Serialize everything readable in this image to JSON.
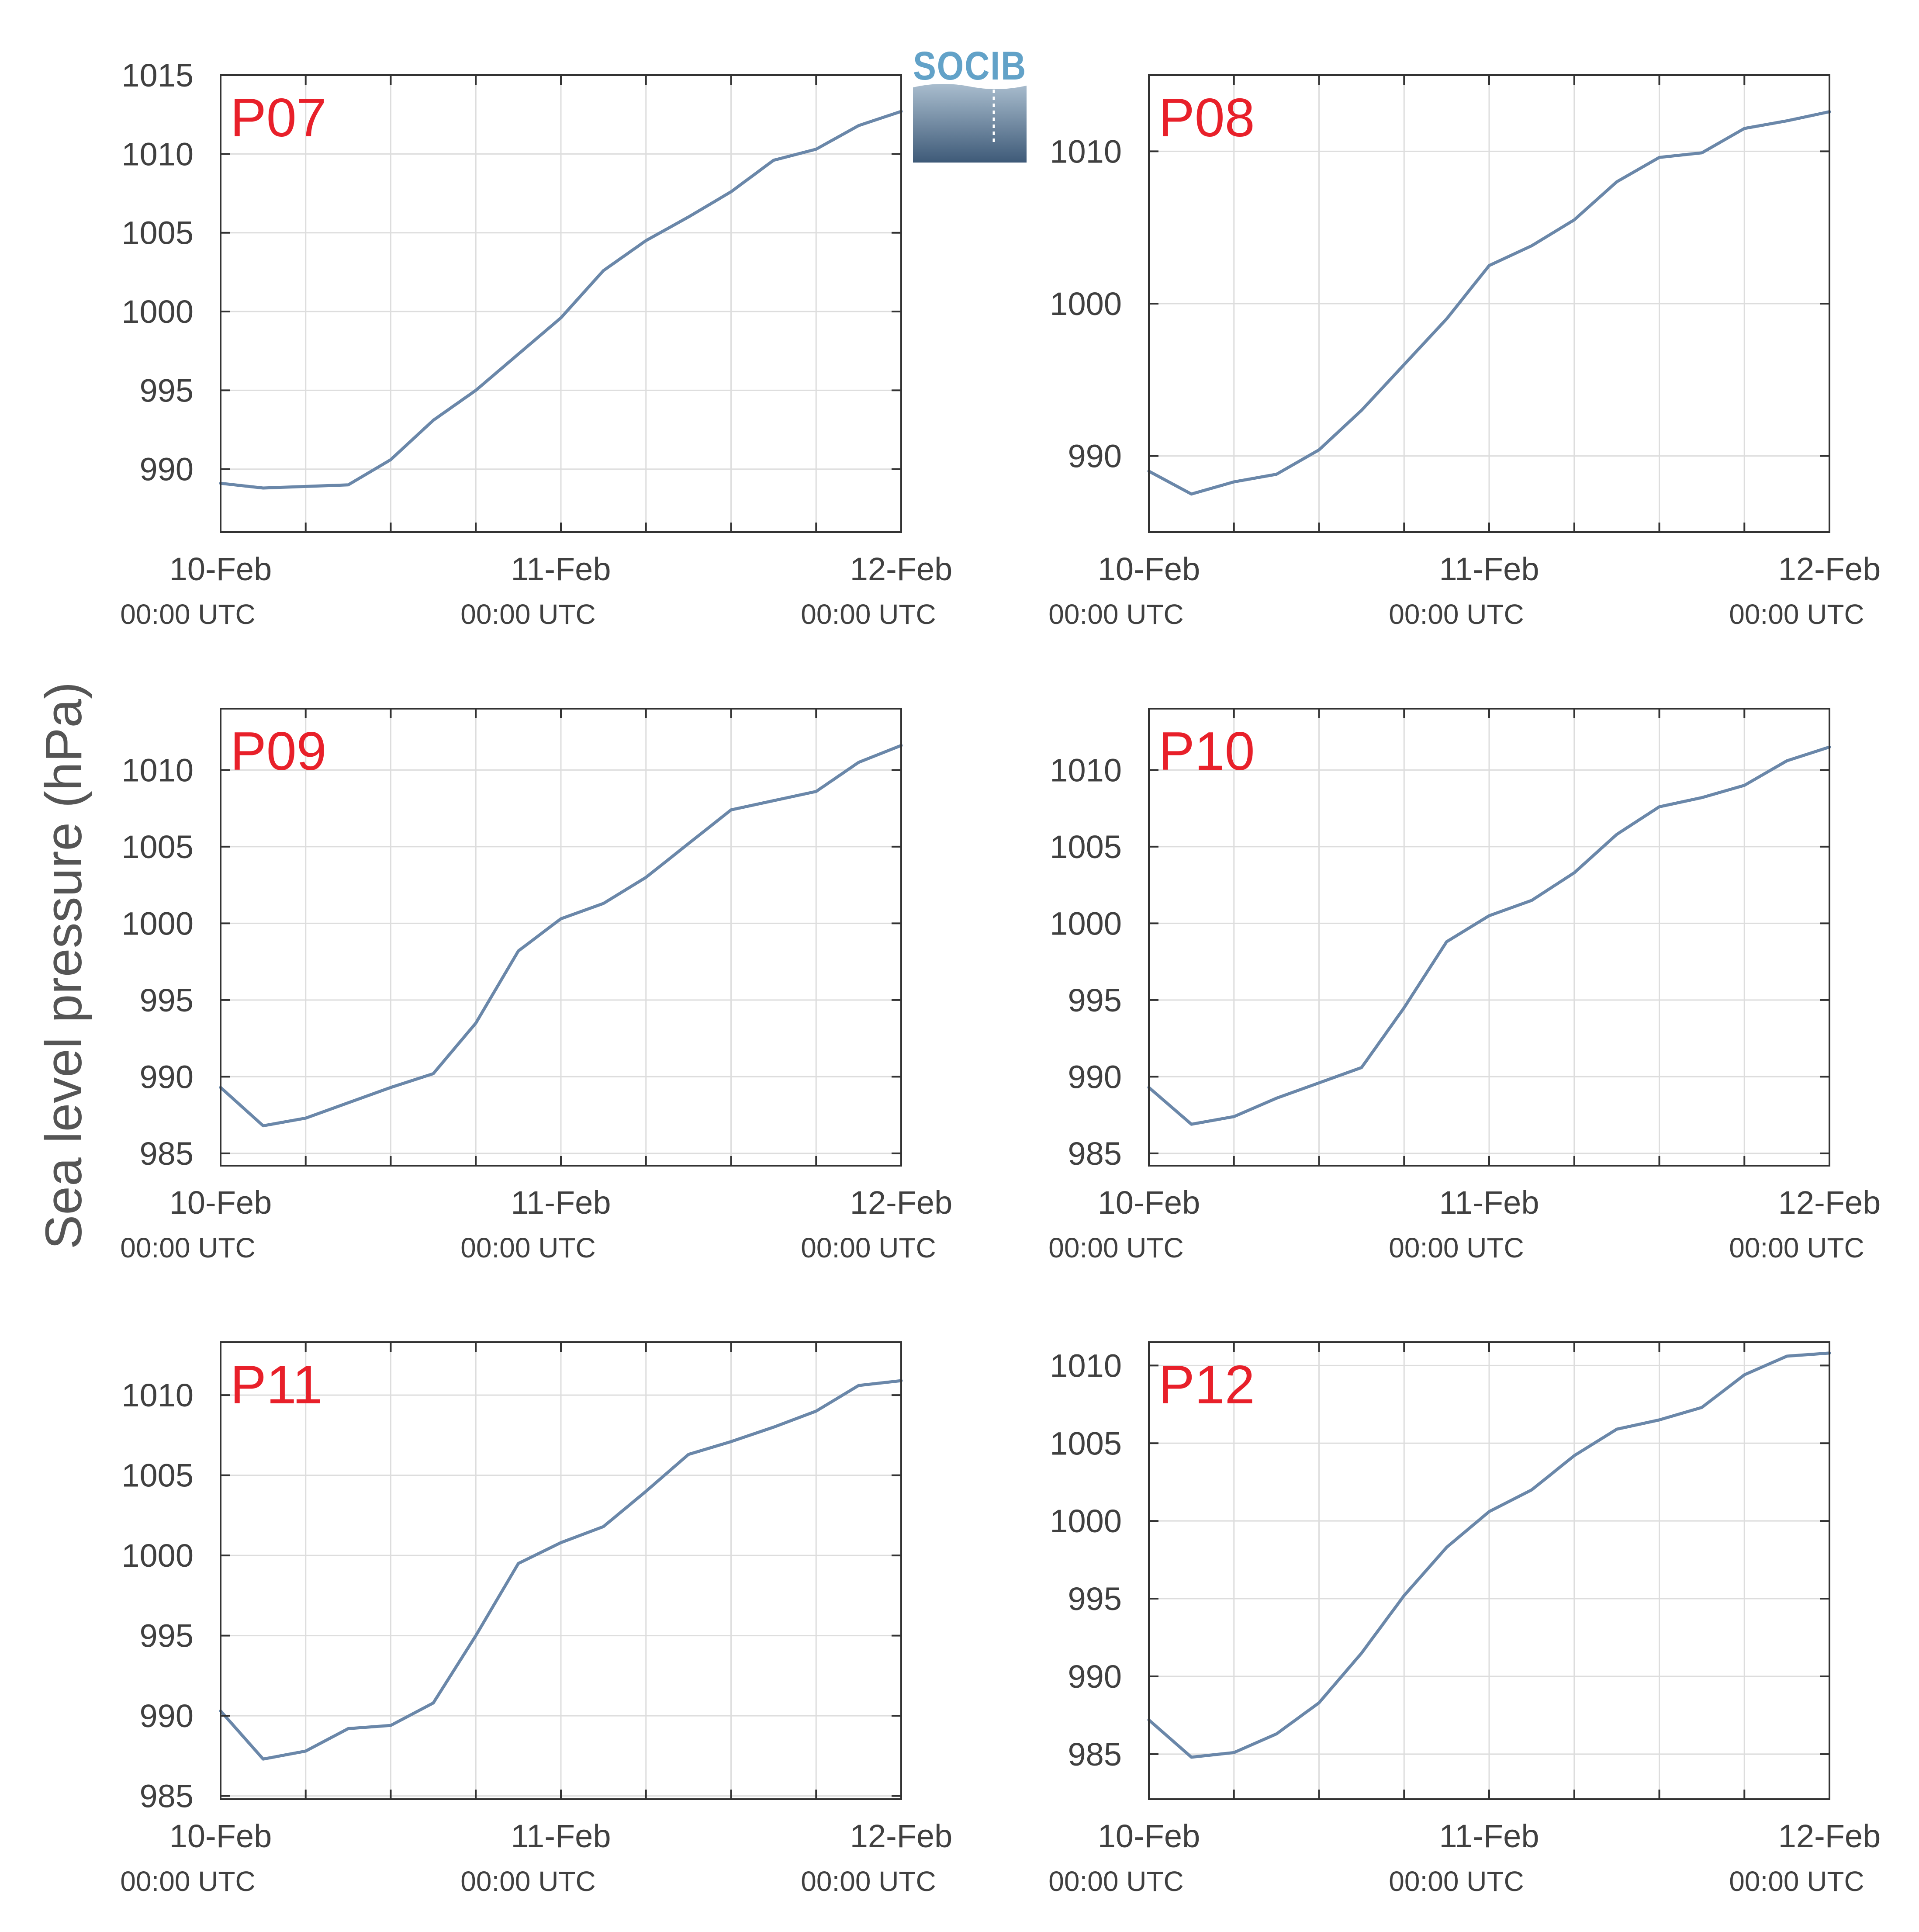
{
  "figure": {
    "ylabel": "Sea level pressure (hPa)",
    "logo_text": "SOCIB"
  },
  "colors": {
    "line": "#6a87a9",
    "grid": "#dddddd",
    "axis": "#333333",
    "panel_label": "#e8202a",
    "logo_blue": "#62a2c8"
  },
  "chart_data": [
    {
      "type": "line",
      "label": "P07",
      "ylim": [
        986,
        1015
      ],
      "yticks": [
        990,
        995,
        1000,
        1005,
        1010,
        1015
      ],
      "xticks": [
        {
          "date": "10-Feb",
          "time": "00:00 UTC"
        },
        {
          "date": "11-Feb",
          "time": "00:00 UTC"
        },
        {
          "date": "12-Feb",
          "time": "00:00 UTC"
        }
      ],
      "x": [
        0,
        3,
        6,
        9,
        12,
        15,
        18,
        21,
        24,
        27,
        30,
        33,
        36,
        39,
        42,
        45,
        48
      ],
      "y": [
        989.1,
        988.8,
        988.9,
        989.0,
        990.6,
        993.1,
        995.0,
        997.3,
        999.6,
        1002.6,
        1004.5,
        1006.0,
        1007.6,
        1009.6,
        1010.3,
        1011.8,
        1012.7
      ]
    },
    {
      "type": "line",
      "label": "P08",
      "ylim": [
        985,
        1015
      ],
      "yticks": [
        990,
        1000,
        1010
      ],
      "xticks": [
        {
          "date": "10-Feb",
          "time": "00:00 UTC"
        },
        {
          "date": "11-Feb",
          "time": "00:00 UTC"
        },
        {
          "date": "12-Feb",
          "time": "00:00 UTC"
        }
      ],
      "x": [
        0,
        3,
        6,
        9,
        12,
        15,
        18,
        21,
        24,
        27,
        30,
        33,
        36,
        39,
        42,
        45,
        48
      ],
      "y": [
        989.0,
        987.5,
        988.3,
        988.8,
        990.4,
        993.0,
        996.0,
        999.0,
        1002.5,
        1003.8,
        1005.5,
        1008.0,
        1009.6,
        1009.9,
        1011.5,
        1012.0,
        1012.6
      ]
    },
    {
      "type": "line",
      "label": "P09",
      "ylim": [
        984.2,
        1014
      ],
      "yticks": [
        985,
        990,
        995,
        1000,
        1005,
        1010
      ],
      "xticks": [
        {
          "date": "10-Feb",
          "time": "00:00 UTC"
        },
        {
          "date": "11-Feb",
          "time": "00:00 UTC"
        },
        {
          "date": "12-Feb",
          "time": "00:00 UTC"
        }
      ],
      "x": [
        0,
        3,
        6,
        9,
        12,
        15,
        18,
        21,
        24,
        27,
        30,
        33,
        36,
        39,
        42,
        45,
        48
      ],
      "y": [
        989.3,
        986.8,
        987.3,
        988.3,
        989.3,
        990.2,
        993.5,
        998.2,
        1000.3,
        1001.3,
        1003.0,
        1005.2,
        1007.4,
        1008.0,
        1008.6,
        1010.5,
        1011.6
      ]
    },
    {
      "type": "line",
      "label": "P10",
      "ylim": [
        984.2,
        1014
      ],
      "yticks": [
        985,
        990,
        995,
        1000,
        1005,
        1010
      ],
      "xticks": [
        {
          "date": "10-Feb",
          "time": "00:00 UTC"
        },
        {
          "date": "11-Feb",
          "time": "00:00 UTC"
        },
        {
          "date": "12-Feb",
          "time": "00:00 UTC"
        }
      ],
      "x": [
        0,
        3,
        6,
        9,
        12,
        15,
        18,
        21,
        24,
        27,
        30,
        33,
        36,
        39,
        42,
        45,
        48
      ],
      "y": [
        989.3,
        986.9,
        987.4,
        988.6,
        989.6,
        990.6,
        994.5,
        998.8,
        1000.5,
        1001.5,
        1003.3,
        1005.8,
        1007.6,
        1008.2,
        1009.0,
        1010.6,
        1011.5
      ]
    },
    {
      "type": "line",
      "label": "P11",
      "ylim": [
        984.8,
        1013.3
      ],
      "yticks": [
        985,
        990,
        995,
        1000,
        1005,
        1010
      ],
      "xticks": [
        {
          "date": "10-Feb",
          "time": "00:00 UTC"
        },
        {
          "date": "11-Feb",
          "time": "00:00 UTC"
        },
        {
          "date": "12-Feb",
          "time": "00:00 UTC"
        }
      ],
      "x": [
        0,
        3,
        6,
        9,
        12,
        15,
        18,
        21,
        24,
        27,
        30,
        33,
        36,
        39,
        42,
        45,
        48
      ],
      "y": [
        990.3,
        987.3,
        987.8,
        989.2,
        989.4,
        990.8,
        995.0,
        999.5,
        1000.8,
        1001.8,
        1004.0,
        1006.3,
        1007.1,
        1008.0,
        1009.0,
        1010.6,
        1010.9
      ]
    },
    {
      "type": "line",
      "label": "P12",
      "ylim": [
        982.1,
        1011.5
      ],
      "yticks": [
        985,
        990,
        995,
        1000,
        1005,
        1010
      ],
      "xticks": [
        {
          "date": "10-Feb",
          "time": "00:00 UTC"
        },
        {
          "date": "11-Feb",
          "time": "00:00 UTC"
        },
        {
          "date": "12-Feb",
          "time": "00:00 UTC"
        }
      ],
      "x": [
        0,
        3,
        6,
        9,
        12,
        15,
        18,
        21,
        24,
        27,
        30,
        33,
        36,
        39,
        42,
        45,
        48
      ],
      "y": [
        987.2,
        984.8,
        985.1,
        986.3,
        988.3,
        991.5,
        995.2,
        998.3,
        1000.6,
        1002.0,
        1004.2,
        1005.9,
        1006.5,
        1007.3,
        1009.4,
        1010.6,
        1010.8
      ]
    }
  ]
}
